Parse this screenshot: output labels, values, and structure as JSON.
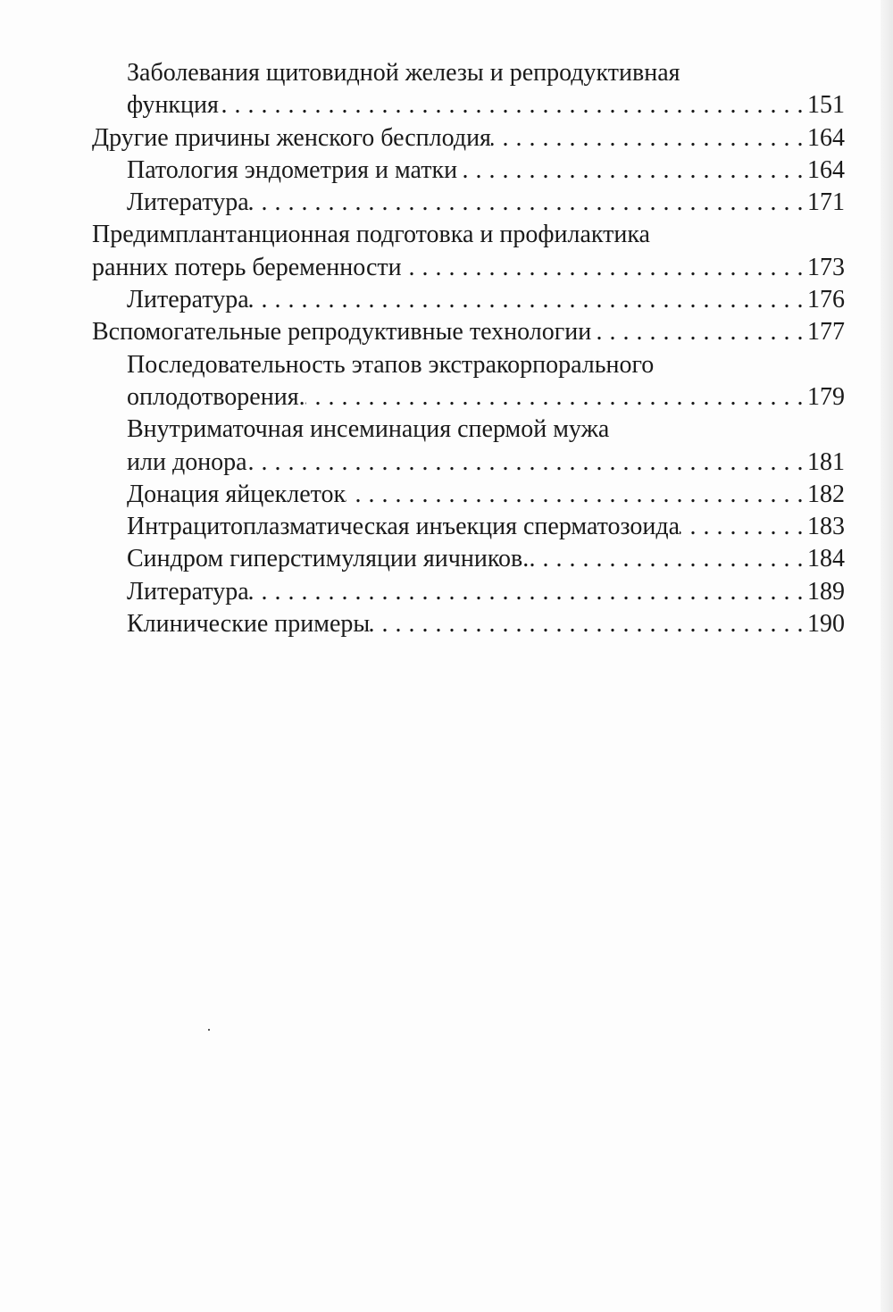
{
  "toc": [
    {
      "level": 2,
      "lines": [
        "Заболевания щитовидной железы и репродуктивная",
        "функция"
      ],
      "page": "151"
    },
    {
      "level": 1,
      "lines": [
        "Другие причины женского бесплодия"
      ],
      "page": "164"
    },
    {
      "level": 2,
      "lines": [
        "Патология эндометрия и матки"
      ],
      "page": "164"
    },
    {
      "level": 2,
      "lines": [
        "Литература"
      ],
      "page": "171"
    },
    {
      "level": 1,
      "lines": [
        "Предимплантанционная подготовка и профилактика",
        "ранних потерь беременности"
      ],
      "page": "173"
    },
    {
      "level": 2,
      "lines": [
        "Литература"
      ],
      "page": "176"
    },
    {
      "level": 1,
      "lines": [
        "Вспомогательные репродуктивные технологии"
      ],
      "page": "177"
    },
    {
      "level": 2,
      "lines": [
        "Последовательность этапов экстракорпорального",
        "оплодотворения."
      ],
      "page": "179"
    },
    {
      "level": 2,
      "lines": [
        "Внутриматочная инсеминация спермой мужа",
        "или донора"
      ],
      "page": "181"
    },
    {
      "level": 2,
      "lines": [
        "Донация яйцеклеток"
      ],
      "page": "182"
    },
    {
      "level": 2,
      "lines": [
        "Интрацитоплазматическая инъекция сперматозоида"
      ],
      "page": "183"
    },
    {
      "level": 2,
      "lines": [
        "Синдром гиперстимуляции яичников."
      ],
      "page": "184"
    },
    {
      "level": 2,
      "lines": [
        "Литература"
      ],
      "page": "189"
    },
    {
      "level": 2,
      "lines": [
        "Клинические примеры"
      ],
      "page": "190"
    }
  ]
}
